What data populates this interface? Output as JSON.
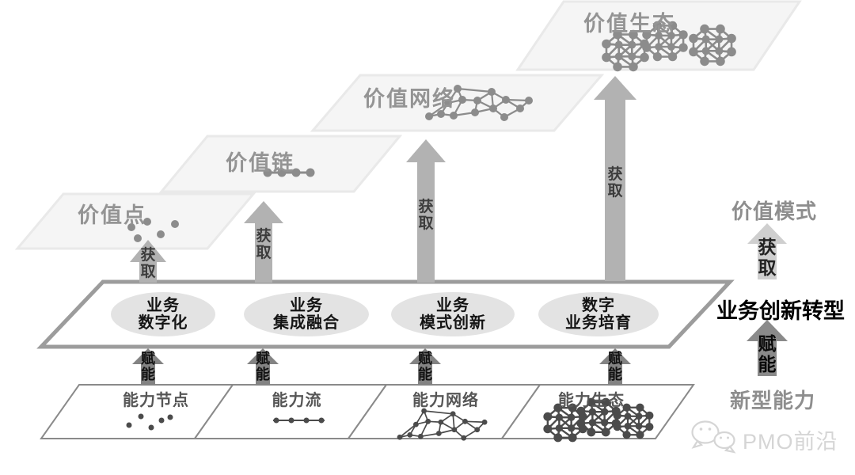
{
  "diagram": {
    "value_planes": [
      {
        "label": "价值点",
        "graphic": "scatter-dots"
      },
      {
        "label": "价值链",
        "graphic": "dot-chain"
      },
      {
        "label": "价值网络",
        "graphic": "network-mesh"
      },
      {
        "label": "价值生态",
        "graphic": "cluster-polyhedra"
      }
    ],
    "flow_labels": {
      "acquire": "获取",
      "empower": "赋能"
    },
    "transform_band": {
      "stages": [
        {
          "label": "业务\n数字化"
        },
        {
          "label": "业务\n集成融合"
        },
        {
          "label": "业务\n模式创新"
        },
        {
          "label": "数字\n业务培育"
        }
      ]
    },
    "right_panel": {
      "value_model": "价值模式",
      "acquire": "获取",
      "transformation": "业务创新转型",
      "empower": "赋能",
      "new_capability": "新型能力"
    },
    "capability_cells": [
      {
        "label": "能力节点",
        "graphic": "scatter-dots"
      },
      {
        "label": "能力流",
        "graphic": "dot-chain"
      },
      {
        "label": "能力网络",
        "graphic": "network-mesh"
      },
      {
        "label": "能力生态",
        "graphic": "cluster-polyhedra"
      }
    ],
    "watermark": {
      "text": "PMO前沿",
      "icon": "wechat-icon"
    }
  },
  "colors": {
    "plane_fill": "#f5f5f5",
    "plane_border": "#e9e9e9",
    "plane_title": "#949494",
    "upper_graphic": "#8c8c8c",
    "acquire_arrow": "#b2b2b2",
    "acquire_label": "#3c3c3c",
    "empower_arrow": "#838383",
    "band_border": "#9c9c9c",
    "ellipse_fill": "#e3e3e3",
    "ellipse_text": "#141414",
    "cell_border": "#8a8a8a",
    "cell_text": "#565656",
    "lower_graphic": "#4b4b4b",
    "right_gray": "#8e8e8e",
    "right_black": "#000000",
    "right_acquire_arrow": "#cfcfcf",
    "right_empower_arrow": "#8a8a8a",
    "watermark": "#d5d5d5"
  }
}
